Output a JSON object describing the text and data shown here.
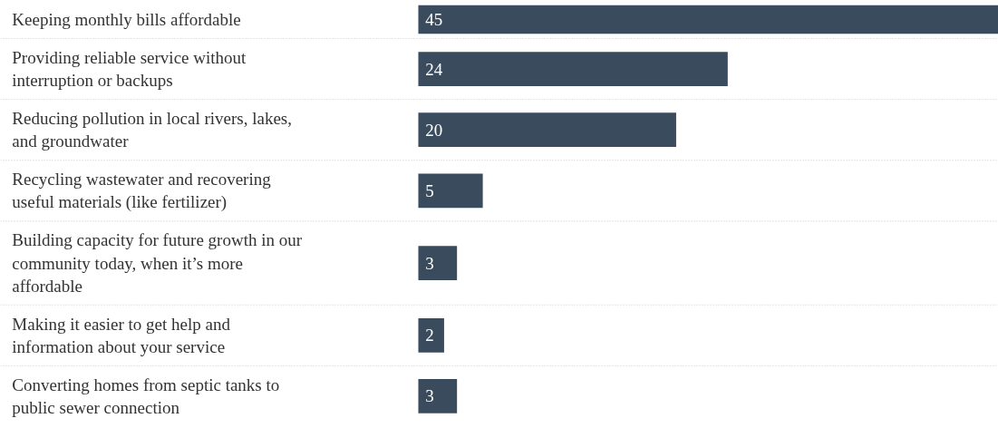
{
  "chart_data": {
    "type": "bar",
    "orientation": "horizontal",
    "categories": [
      "Keeping monthly bills affordable",
      "Providing reliable service without\ninterruption or backups",
      "Reducing pollution in local rivers, lakes,\nand groundwater",
      "Recycling wastewater and recovering\nuseful materials (like fertilizer)",
      "Building capacity for future growth in our\ncommunity today, when it’s more\naffordable",
      "Making it easier to get help and\ninformation about your service",
      "Converting homes from septic tanks to\npublic sewer connection"
    ],
    "values": [
      45,
      24,
      20,
      5,
      3,
      2,
      3
    ],
    "color": "#3a4b5e",
    "data_labels": true,
    "grid": "y",
    "xlim": [
      0,
      45
    ]
  }
}
